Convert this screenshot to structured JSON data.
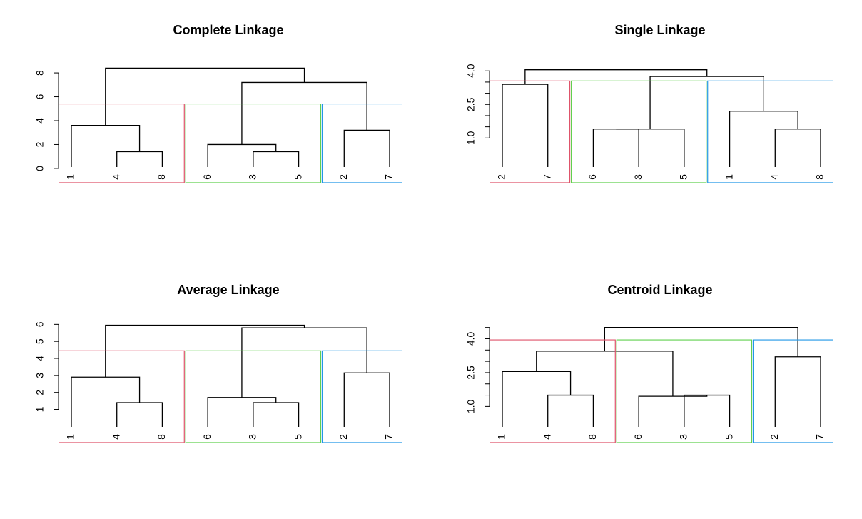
{
  "chart_data": [
    {
      "type": "dendrogram",
      "title": "Complete Linkage",
      "yticks": [
        0,
        2,
        4,
        6,
        8
      ],
      "ylim": [
        -1.2,
        9.2
      ],
      "leaf_order": [
        "1",
        "4",
        "8",
        "6",
        "3",
        "5",
        "2",
        "7"
      ],
      "merges": [
        {
          "a": "L8",
          "b": "L4",
          "h": 1.4
        },
        {
          "a": "L5",
          "b": "L3",
          "h": 1.4
        },
        {
          "a": "L1",
          "b": "M0",
          "h": 3.6
        },
        {
          "a": "L6",
          "b": "M1",
          "h": 2.0
        },
        {
          "a": "L2",
          "b": "L7",
          "h": 3.2
        },
        {
          "a": "M3",
          "b": "M4",
          "h": 7.2
        },
        {
          "a": "M2",
          "b": "M5",
          "h": 8.4
        }
      ],
      "clusters": [
        {
          "leaves": [
            "1",
            "4",
            "8"
          ],
          "color": "#DF536B"
        },
        {
          "leaves": [
            "6",
            "3",
            "5"
          ],
          "color": "#61D04F"
        },
        {
          "leaves": [
            "2",
            "7"
          ],
          "color": "#2297E6"
        }
      ],
      "cut_height": 5.4
    },
    {
      "type": "dendrogram",
      "title": "Single Linkage",
      "yticks": [
        1.0,
        2.5,
        4.0
      ],
      "tick_labels": [
        "1.0",
        "2.5",
        "4.0"
      ],
      "minor_ticks": [
        1.5,
        2.0,
        3.0,
        3.5
      ],
      "ylim": [
        -1.0,
        4.55
      ],
      "leaf_order": [
        "2",
        "7",
        "6",
        "3",
        "5",
        "1",
        "4",
        "8"
      ],
      "merges": [
        {
          "a": "L2",
          "b": "L7",
          "h": 3.4
        },
        {
          "a": "L6",
          "b": "L3",
          "h": 1.4
        },
        {
          "a": "M1",
          "b": "L5",
          "h": 1.4
        },
        {
          "a": "L4",
          "b": "L8",
          "h": 1.4
        },
        {
          "a": "L1",
          "b": "M3",
          "h": 2.2
        },
        {
          "a": "M2",
          "b": "M4",
          "h": 3.75
        },
        {
          "a": "M0",
          "b": "M5",
          "h": 4.05
        }
      ],
      "clusters": [
        {
          "leaves": [
            "2",
            "7"
          ],
          "color": "#DF536B"
        },
        {
          "leaves": [
            "6",
            "3",
            "5"
          ],
          "color": "#61D04F"
        },
        {
          "leaves": [
            "1",
            "4",
            "8"
          ],
          "color": "#2297E6"
        }
      ],
      "cut_height": 3.55
    },
    {
      "type": "dendrogram",
      "title": "Average Linkage",
      "yticks": [
        1,
        2,
        3,
        4,
        5,
        6
      ],
      "ylim": [
        -0.95,
        6.35
      ],
      "leaf_order": [
        "1",
        "4",
        "8",
        "6",
        "3",
        "5",
        "2",
        "7"
      ],
      "merges": [
        {
          "a": "L4",
          "b": "L8",
          "h": 1.4
        },
        {
          "a": "L1",
          "b": "M0",
          "h": 2.9
        },
        {
          "a": "L3",
          "b": "L5",
          "h": 1.4
        },
        {
          "a": "L6",
          "b": "M2",
          "h": 1.7
        },
        {
          "a": "L2",
          "b": "L7",
          "h": 3.15
        },
        {
          "a": "M3",
          "b": "M4",
          "h": 5.8
        },
        {
          "a": "M1",
          "b": "M5",
          "h": 5.95
        }
      ],
      "clusters": [
        {
          "leaves": [
            "1",
            "4",
            "8"
          ],
          "color": "#DF536B"
        },
        {
          "leaves": [
            "6",
            "3",
            "5"
          ],
          "color": "#61D04F"
        },
        {
          "leaves": [
            "2",
            "7"
          ],
          "color": "#2297E6"
        }
      ],
      "cut_height": 4.45
    },
    {
      "type": "dendrogram",
      "title": "Centroid Linkage",
      "yticks": [
        1.0,
        2.5,
        4.0
      ],
      "tick_labels": [
        "1.0",
        "2.5",
        "4.0"
      ],
      "minor_ticks": [
        1.5,
        2.0,
        3.0,
        3.5,
        4.5
      ],
      "ylim": [
        -0.6,
        4.9
      ],
      "leaf_order": [
        "1",
        "4",
        "8",
        "6",
        "3",
        "5",
        "2",
        "7"
      ],
      "merges": [
        {
          "a": "L4",
          "b": "L8",
          "h": 1.5
        },
        {
          "a": "L1",
          "b": "M0",
          "h": 2.55
        },
        {
          "a": "L3",
          "b": "L5",
          "h": 1.5
        },
        {
          "a": "L6",
          "b": "M2",
          "h": 1.45
        },
        {
          "a": "L2",
          "b": "L7",
          "h": 3.2
        },
        {
          "a": "M1",
          "b": "M3",
          "h": 3.45
        },
        {
          "a": "M5",
          "b": "M4",
          "h": 4.5
        }
      ],
      "clusters": [
        {
          "leaves": [
            "1",
            "4",
            "8"
          ],
          "color": "#DF536B"
        },
        {
          "leaves": [
            "6",
            "3",
            "5"
          ],
          "color": "#61D04F"
        },
        {
          "leaves": [
            "2",
            "7"
          ],
          "color": "#2297E6"
        }
      ],
      "cut_height": 3.95
    }
  ]
}
